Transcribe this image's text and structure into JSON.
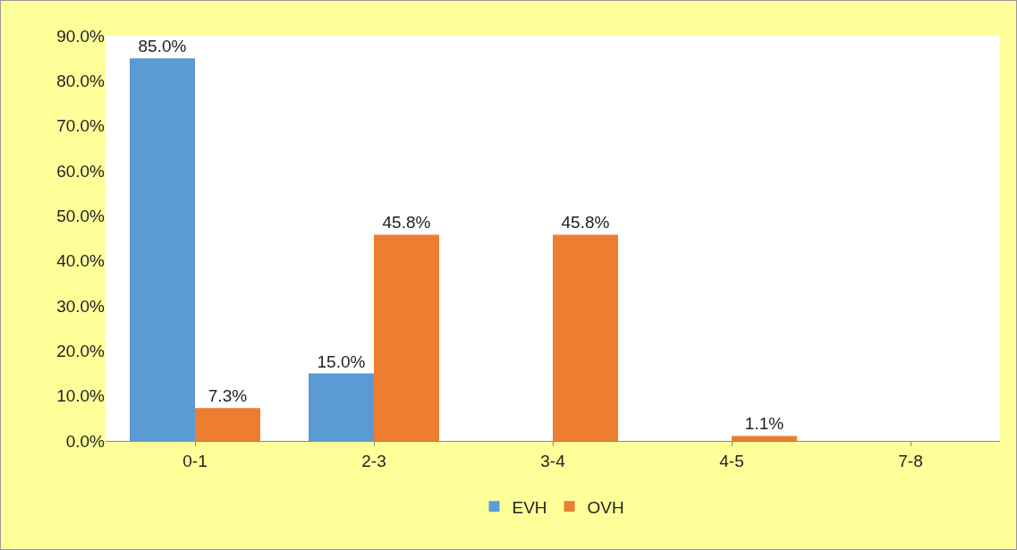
{
  "chart_data": {
    "type": "bar",
    "categories": [
      "0-1",
      "2-3",
      "3-4",
      "4-5",
      "7-8"
    ],
    "series": [
      {
        "name": "EVH",
        "color": "#5b9bd5",
        "values": [
          85,
          15,
          null,
          null,
          null
        ],
        "value_labels": [
          "85.0%",
          "15.0%",
          null,
          null,
          null
        ]
      },
      {
        "name": "OVH",
        "color": "#ed7d31",
        "values": [
          7.3,
          45.8,
          45.8,
          1.1,
          null
        ],
        "value_labels": [
          "7.3%",
          "45.8%",
          "45.8%",
          "1.1%",
          null
        ]
      }
    ],
    "ylim": [
      0,
      90
    ],
    "yticks": [
      {
        "value": 0,
        "label": "0.0%"
      },
      {
        "value": 10,
        "label": "10.0%"
      },
      {
        "value": 20,
        "label": "20.0%"
      },
      {
        "value": 30,
        "label": "30.0%"
      },
      {
        "value": 40,
        "label": "40.0%"
      },
      {
        "value": 50,
        "label": "50.0%"
      },
      {
        "value": 60,
        "label": "60.0%"
      },
      {
        "value": 70,
        "label": "70.0%"
      },
      {
        "value": 80,
        "label": "80.0%"
      },
      {
        "value": 90,
        "label": "90.0%"
      }
    ],
    "grid": false,
    "legend": "bottom"
  }
}
